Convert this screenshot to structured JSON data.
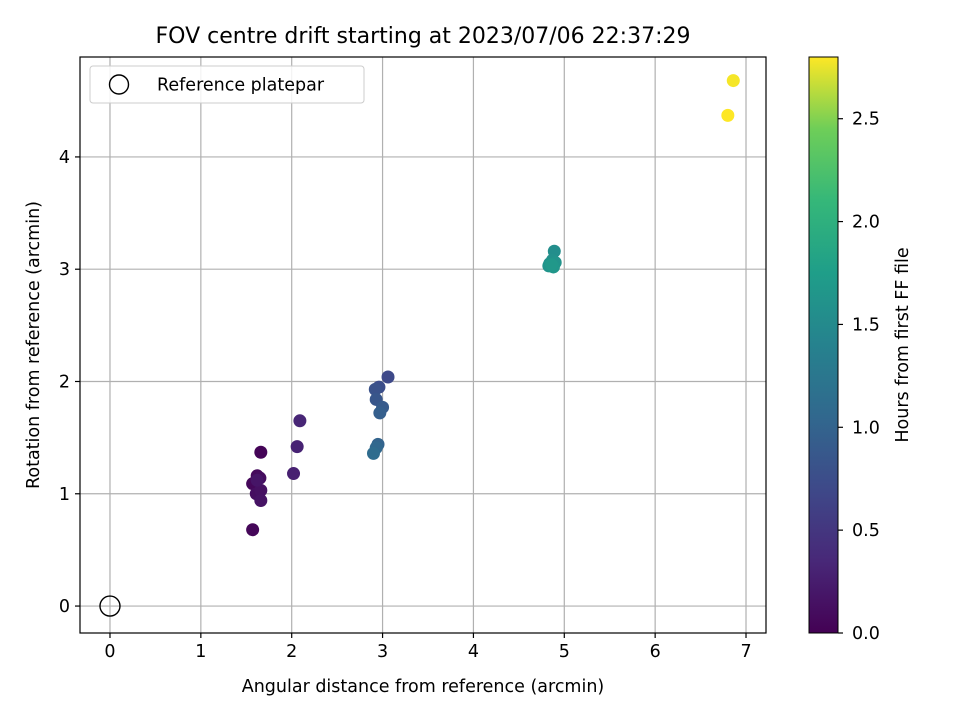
{
  "chart_data": {
    "type": "scatter",
    "title": "FOV centre drift starting at 2023/07/06 22:37:29",
    "xlabel": "Angular distance from reference (arcmin)",
    "ylabel": "Rotation from reference (arcmin)",
    "xlim": [
      -0.33,
      7.22
    ],
    "ylim": [
      -0.24,
      4.89
    ],
    "xticks": [
      0,
      1,
      2,
      3,
      4,
      5,
      6,
      7
    ],
    "yticks": [
      0,
      1,
      2,
      3,
      4
    ],
    "grid": true,
    "legend": {
      "placement": "top-left",
      "entries": [
        "Reference platepar"
      ]
    },
    "reference_point": {
      "x": 0.0,
      "y": 0.0,
      "label": "Reference platepar"
    },
    "colorbar": {
      "label": "Hours from first FF file",
      "range": [
        0.0,
        2.8
      ],
      "ticks": [
        0.0,
        0.5,
        1.0,
        1.5,
        2.0,
        2.5
      ],
      "colormap": "viridis"
    },
    "points": [
      {
        "x": 1.57,
        "y": 0.68,
        "c": 0.05
      },
      {
        "x": 1.66,
        "y": 1.37,
        "c": 0.03
      },
      {
        "x": 1.57,
        "y": 1.09,
        "c": 0.06
      },
      {
        "x": 1.62,
        "y": 1.16,
        "c": 0.08
      },
      {
        "x": 1.65,
        "y": 1.14,
        "c": 0.1
      },
      {
        "x": 1.61,
        "y": 1.0,
        "c": 0.12
      },
      {
        "x": 1.66,
        "y": 1.03,
        "c": 0.14
      },
      {
        "x": 1.66,
        "y": 0.94,
        "c": 0.16
      },
      {
        "x": 1.62,
        "y": 1.12,
        "c": 0.18
      },
      {
        "x": 2.02,
        "y": 1.18,
        "c": 0.28
      },
      {
        "x": 2.06,
        "y": 1.42,
        "c": 0.3
      },
      {
        "x": 2.09,
        "y": 1.65,
        "c": 0.33
      },
      {
        "x": 3.06,
        "y": 2.04,
        "c": 0.7
      },
      {
        "x": 2.96,
        "y": 1.95,
        "c": 0.75
      },
      {
        "x": 2.92,
        "y": 1.93,
        "c": 0.8
      },
      {
        "x": 2.93,
        "y": 1.84,
        "c": 0.85
      },
      {
        "x": 3.0,
        "y": 1.77,
        "c": 0.9
      },
      {
        "x": 2.97,
        "y": 1.72,
        "c": 0.95
      },
      {
        "x": 2.95,
        "y": 1.44,
        "c": 1.0
      },
      {
        "x": 2.93,
        "y": 1.41,
        "c": 1.05
      },
      {
        "x": 2.9,
        "y": 1.36,
        "c": 1.1
      },
      {
        "x": 4.89,
        "y": 3.16,
        "c": 1.55
      },
      {
        "x": 4.87,
        "y": 3.08,
        "c": 1.57
      },
      {
        "x": 4.84,
        "y": 3.05,
        "c": 1.59
      },
      {
        "x": 4.9,
        "y": 3.06,
        "c": 1.61
      },
      {
        "x": 4.83,
        "y": 3.03,
        "c": 1.63
      },
      {
        "x": 4.88,
        "y": 3.02,
        "c": 1.65
      },
      {
        "x": 4.86,
        "y": 3.04,
        "c": 1.67
      },
      {
        "x": 6.86,
        "y": 4.68,
        "c": 2.78
      },
      {
        "x": 6.8,
        "y": 4.37,
        "c": 2.8
      }
    ]
  }
}
